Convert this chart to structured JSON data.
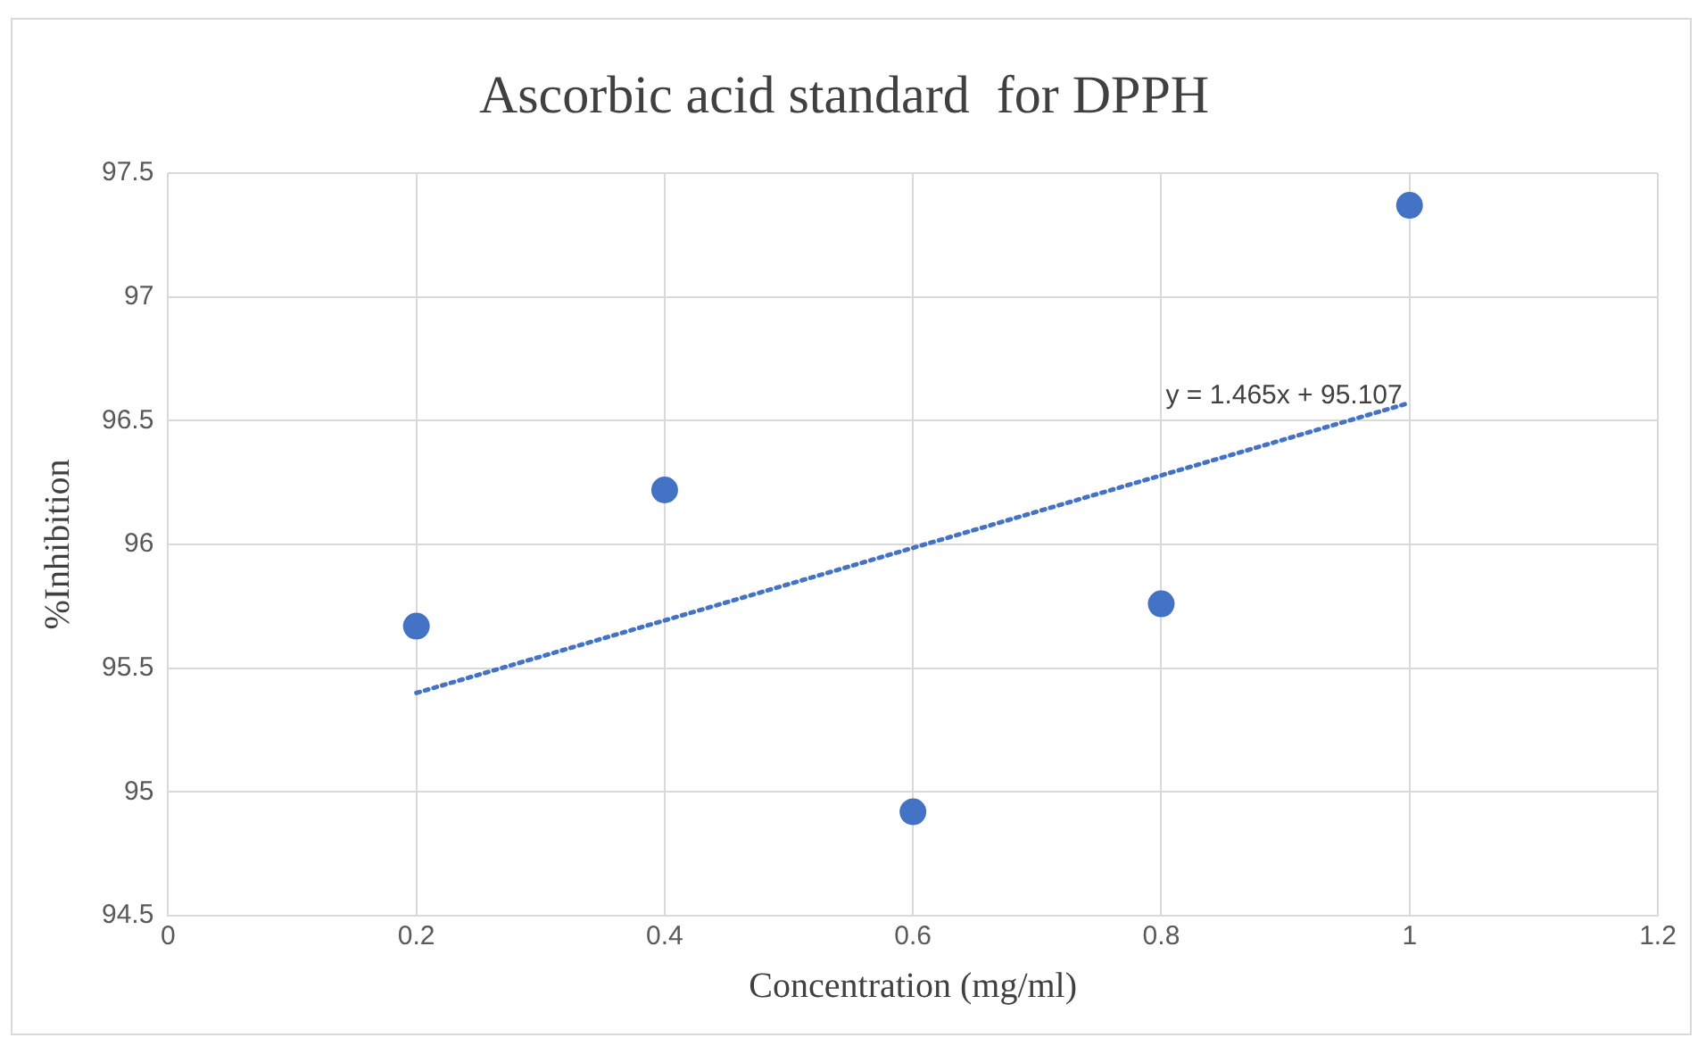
{
  "chart_data": {
    "type": "scatter",
    "title": "Ascorbic acid standard  for DPPH",
    "xlabel": "Concentration (mg/ml)",
    "ylabel": "%Inhibition",
    "x": [
      0.2,
      0.4,
      0.6,
      0.8,
      1.0
    ],
    "series": [
      {
        "color": "#4472c4",
        "values": [
          95.67,
          96.22,
          94.92,
          95.76,
          97.37
        ],
        "marker": "circle"
      },
      {
        "type": "line",
        "color": "#4472c4",
        "x": [
          0.2,
          1.0
        ],
        "values": [
          95.4,
          96.572
        ],
        "line_style": "dotted",
        "marker": "none"
      }
    ],
    "annotations": [
      "y = 1.465x + 95.107"
    ],
    "xlim": [
      0,
      1.2
    ],
    "xticks": [
      0,
      0.2,
      0.4,
      0.6,
      0.8,
      1,
      1.2
    ],
    "ylim": [
      94.5,
      97.5
    ],
    "yticks": [
      94.5,
      95,
      95.5,
      96,
      96.5,
      97,
      97.5
    ],
    "grid": true,
    "legend": false
  }
}
